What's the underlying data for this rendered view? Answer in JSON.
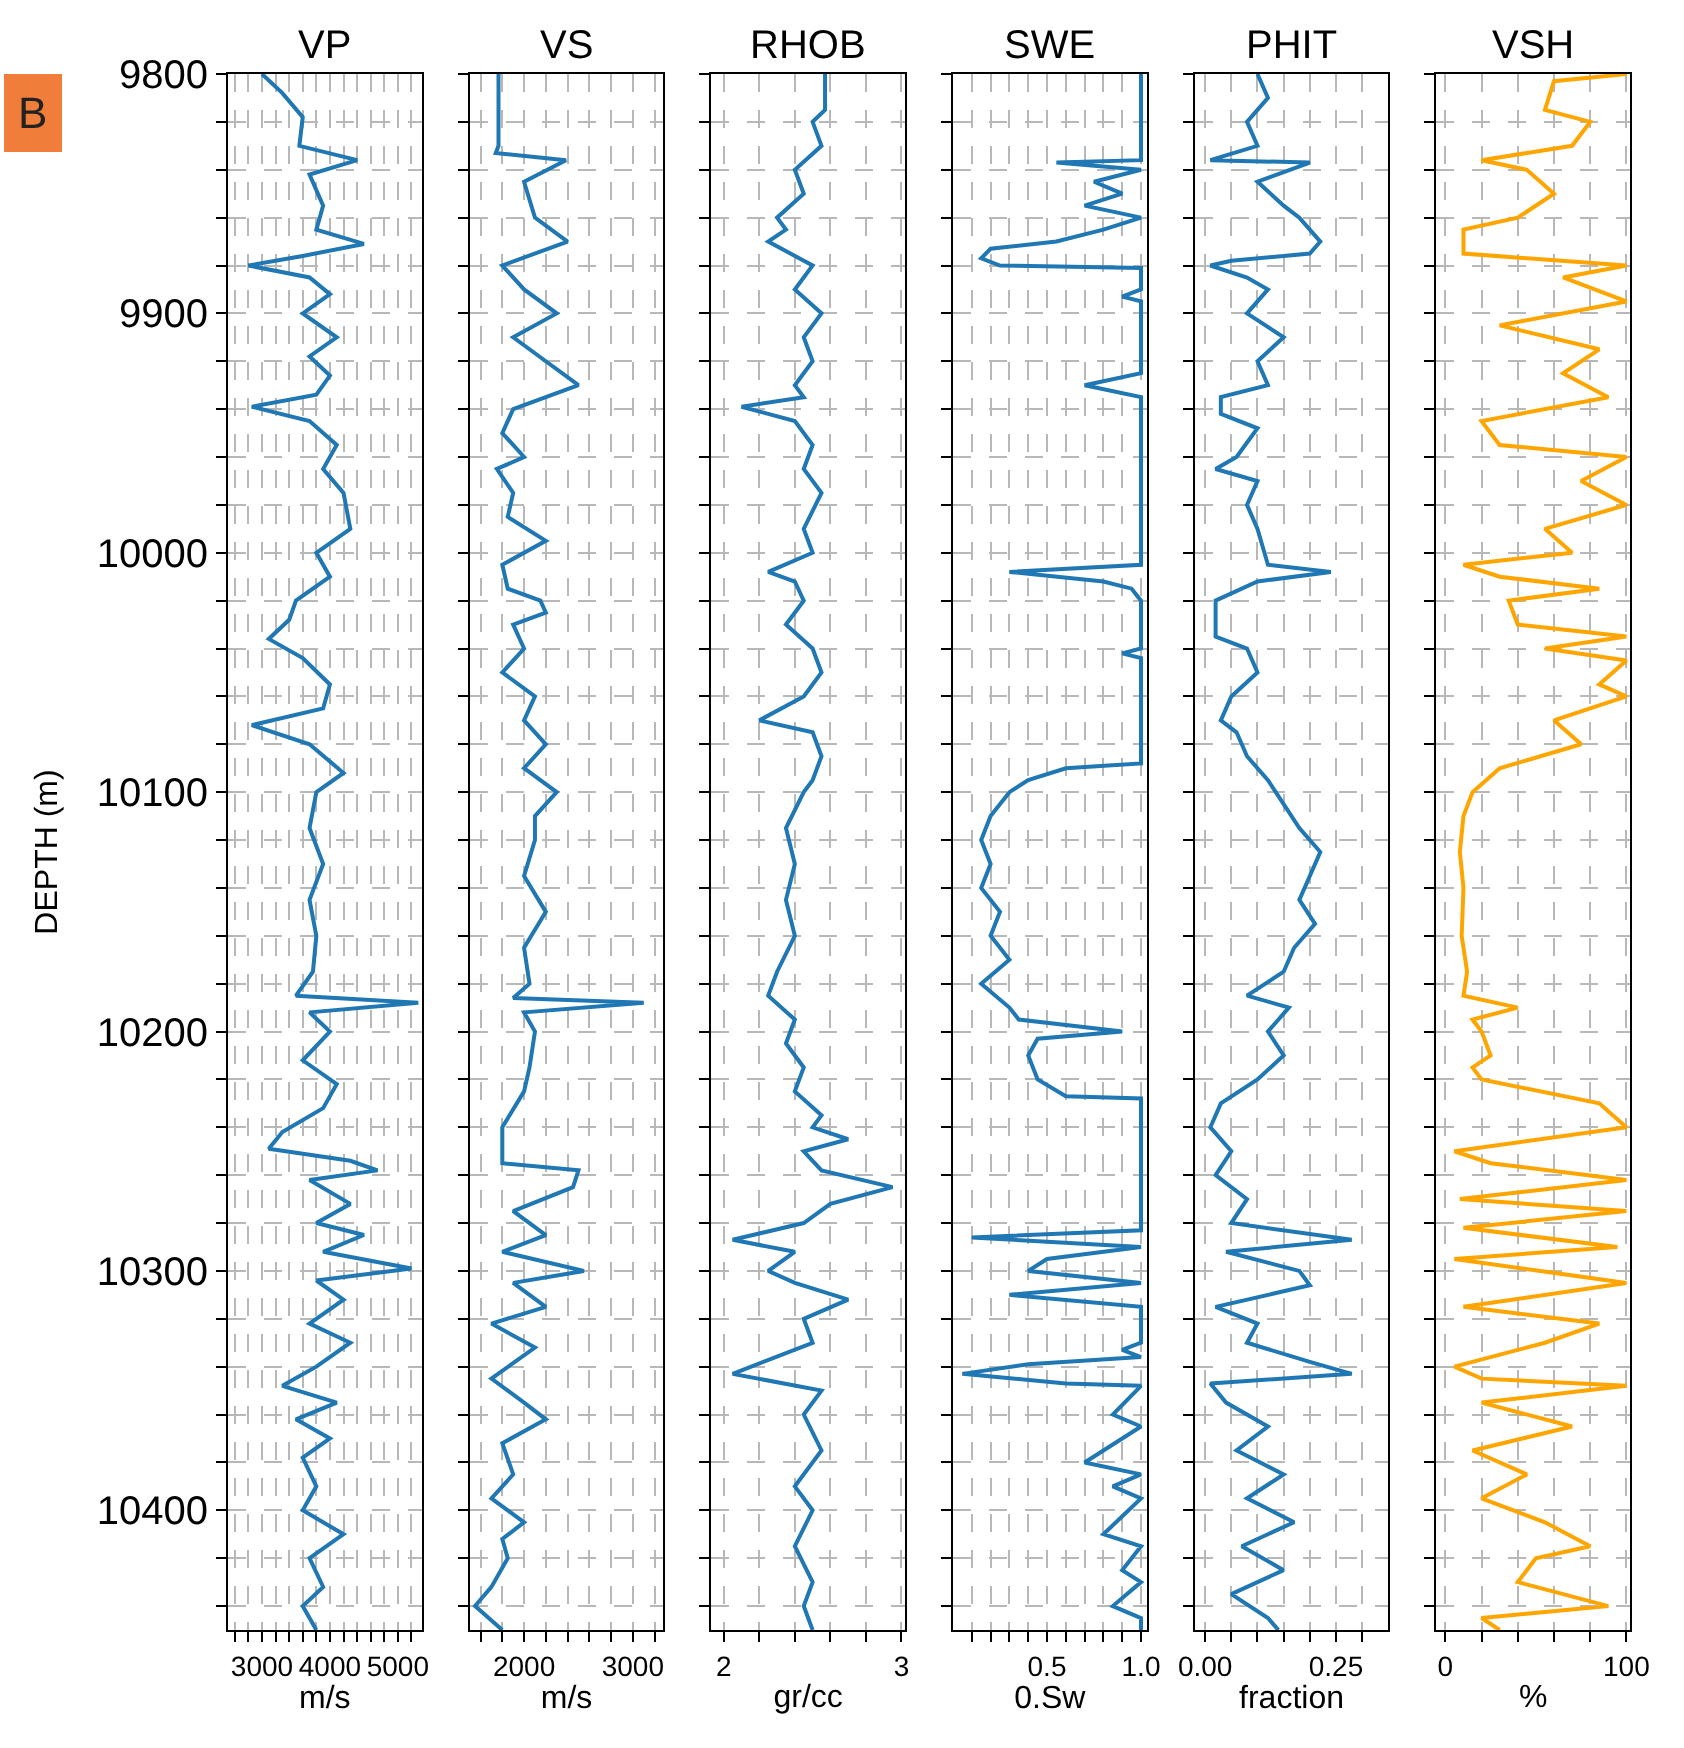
{
  "chart_data": [
    {
      "type": "line",
      "title": "VP",
      "xlabel": "m/s",
      "ylabel": "DEPTH (m)",
      "annotations": [
        "B"
      ],
      "grid": true,
      "xlim": [
        2500,
        5350
      ],
      "xticks": [
        {
          "value": 2600,
          "label": null
        },
        {
          "value": 2800,
          "label": null
        },
        3000,
        {
          "value": 3200,
          "label": null
        },
        {
          "value": 3400,
          "label": null
        },
        {
          "value": 3600,
          "label": null
        },
        {
          "value": 3800,
          "label": null
        },
        4000,
        {
          "value": 4200,
          "label": null
        },
        {
          "value": 4400,
          "label": null
        },
        {
          "value": 4600,
          "label": null
        },
        {
          "value": 4800,
          "label": null
        },
        5000,
        {
          "value": 5200,
          "label": null
        }
      ],
      "ylim": [
        10450,
        9800
      ],
      "yticks": [
        9800,
        {
          "value": 9820,
          "label": null
        },
        {
          "value": 9840,
          "label": null
        },
        {
          "value": 9860,
          "label": null
        },
        {
          "value": 9880,
          "label": null
        },
        9900,
        {
          "value": 9920,
          "label": null
        },
        {
          "value": 9940,
          "label": null
        },
        {
          "value": 9960,
          "label": null
        },
        {
          "value": 9980,
          "label": null
        },
        10000,
        {
          "value": 10020,
          "label": null
        },
        {
          "value": 10040,
          "label": null
        },
        {
          "value": 10060,
          "label": null
        },
        {
          "value": 10080,
          "label": null
        },
        10100,
        {
          "value": 10120,
          "label": null
        },
        {
          "value": 10140,
          "label": null
        },
        {
          "value": 10160,
          "label": null
        },
        {
          "value": 10180,
          "label": null
        },
        10200,
        {
          "value": 10220,
          "label": null
        },
        {
          "value": 10240,
          "label": null
        },
        {
          "value": 10260,
          "label": null
        },
        {
          "value": 10280,
          "label": null
        },
        10300,
        {
          "value": 10320,
          "label": null
        },
        {
          "value": 10340,
          "label": null
        },
        {
          "value": 10360,
          "label": null
        },
        {
          "value": 10380,
          "label": null
        },
        10400,
        {
          "value": 10420,
          "label": null
        },
        {
          "value": 10440,
          "label": null
        }
      ],
      "series": [
        {
          "color": "#1f77b4",
          "x": [
            3000,
            3300,
            3600,
            3550,
            4400,
            3700,
            3900,
            3800,
            4500,
            3600,
            2800,
            3700,
            4000,
            3600,
            4100,
            3700,
            4000,
            3800,
            2850,
            3700,
            4100,
            3900,
            4200,
            4300,
            3800,
            4000,
            3500,
            3400,
            3100,
            3600,
            4000,
            3900,
            2850,
            3700,
            4200,
            3800,
            3700,
            3900,
            3700,
            3800,
            3750,
            3500,
            5300,
            3700,
            4000,
            3600,
            4100,
            3900,
            3300,
            3100,
            4300,
            4700,
            3700,
            4300,
            3800,
            4500,
            3900,
            5200,
            3800,
            4200,
            3700,
            4300,
            3800,
            3300,
            4100,
            3500,
            4000,
            3600,
            3800,
            3600,
            4200,
            3700,
            3900,
            3600,
            3800
          ],
          "values": [
            9800,
            9808,
            9818,
            9830,
            9836,
            9842,
            9855,
            9865,
            9871,
            9876,
            9880,
            9885,
            9892,
            9900,
            9910,
            9918,
            9926,
            9934,
            9939,
            9945,
            9955,
            9965,
            9975,
            9990,
            10000,
            10010,
            10020,
            10028,
            10036,
            10044,
            10055,
            10065,
            10072,
            10080,
            10092,
            10100,
            10115,
            10130,
            10145,
            10160,
            10175,
            10185,
            10188,
            10192,
            10200,
            10212,
            10222,
            10232,
            10242,
            10249,
            10254,
            10258,
            10262,
            10272,
            10280,
            10285,
            10292,
            10299,
            10304,
            10312,
            10322,
            10330,
            10340,
            10348,
            10355,
            10362,
            10370,
            10378,
            10390,
            10400,
            10410,
            10420,
            10432,
            10440,
            10450
          ]
        }
      ]
    },
    {
      "type": "line",
      "title": "VS",
      "xlabel": "m/s",
      "grid": true,
      "tick_labels": "x",
      "xlim": [
        1500,
        3280
      ],
      "xticks": [
        {
          "value": 1600,
          "label": null
        },
        {
          "value": 1800,
          "label": null
        },
        2000,
        {
          "value": 2200,
          "label": null
        },
        {
          "value": 2400,
          "label": null
        },
        {
          "value": 2600,
          "label": null
        },
        {
          "value": 2800,
          "label": null
        },
        3000,
        {
          "value": 3200,
          "label": null
        }
      ],
      "ylim": [
        10450,
        9800
      ],
      "yticks": [
        9800,
        {
          "value": 9820,
          "label": null
        },
        {
          "value": 9840,
          "label": null
        },
        {
          "value": 9860,
          "label": null
        },
        {
          "value": 9880,
          "label": null
        },
        9900,
        {
          "value": 9920,
          "label": null
        },
        {
          "value": 9940,
          "label": null
        },
        {
          "value": 9960,
          "label": null
        },
        {
          "value": 9980,
          "label": null
        },
        10000,
        {
          "value": 10020,
          "label": null
        },
        {
          "value": 10040,
          "label": null
        },
        {
          "value": 10060,
          "label": null
        },
        {
          "value": 10080,
          "label": null
        },
        10100,
        {
          "value": 10120,
          "label": null
        },
        {
          "value": 10140,
          "label": null
        },
        {
          "value": 10160,
          "label": null
        },
        {
          "value": 10180,
          "label": null
        },
        10200,
        {
          "value": 10220,
          "label": null
        },
        {
          "value": 10240,
          "label": null
        },
        {
          "value": 10260,
          "label": null
        },
        {
          "value": 10280,
          "label": null
        },
        10300,
        {
          "value": 10320,
          "label": null
        },
        {
          "value": 10340,
          "label": null
        },
        {
          "value": 10360,
          "label": null
        },
        {
          "value": 10380,
          "label": null
        },
        10400,
        {
          "value": 10420,
          "label": null
        },
        {
          "value": 10440,
          "label": null
        }
      ],
      "series": [
        {
          "color": "#1f77b4",
          "x": [
            1765,
            1765,
            1740,
            2385,
            2000,
            2100,
            2400,
            1800,
            2000,
            2300,
            1900,
            2200,
            2500,
            1900,
            1800,
            2000,
            1750,
            1900,
            1850,
            2200,
            1800,
            1850,
            2150,
            2200,
            1900,
            2000,
            1800,
            2100,
            2000,
            2200,
            2000,
            2300,
            2100,
            2100,
            2000,
            2200,
            2000,
            2050,
            1900,
            3100,
            2000,
            2100,
            2050,
            2000,
            1800,
            1800,
            2500,
            2450,
            1900,
            2200,
            1800,
            2550,
            1900,
            2200,
            1700,
            2100,
            1700,
            2000,
            2200,
            1800,
            1900,
            1700,
            2000,
            1800,
            1850,
            1700,
            1550,
            1800
          ],
          "values": [
            9800,
            9830,
            9833,
            9836,
            9845,
            9860,
            9870,
            9880,
            9890,
            9900,
            9910,
            9920,
            9930,
            9940,
            9950,
            9960,
            9965,
            9975,
            9985,
            9995,
            10005,
            10015,
            10020,
            10025,
            10030,
            10040,
            10050,
            10060,
            10070,
            10080,
            10090,
            10100,
            10110,
            10120,
            10135,
            10150,
            10165,
            10180,
            10186,
            10188,
            10192,
            10200,
            10215,
            10225,
            10240,
            10255,
            10258,
            10265,
            10275,
            10285,
            10292,
            10300,
            10305,
            10315,
            10322,
            10332,
            10345,
            10355,
            10362,
            10372,
            10385,
            10395,
            10405,
            10412,
            10420,
            10432,
            10440,
            10450
          ]
        }
      ]
    },
    {
      "type": "line",
      "title": "RHOB",
      "xlabel": "gr/cc",
      "grid": true,
      "tick_labels": "x",
      "xlim": [
        1.93,
        3.02
      ],
      "xticks": [
        2,
        {
          "value": 2.2,
          "label": null
        },
        {
          "value": 2.4,
          "label": null
        },
        {
          "value": 2.6,
          "label": null
        },
        {
          "value": 2.8,
          "label": null
        },
        3
      ],
      "ylim": [
        10450,
        9800
      ],
      "yticks": [
        9800,
        {
          "value": 9820,
          "label": null
        },
        {
          "value": 9840,
          "label": null
        },
        {
          "value": 9860,
          "label": null
        },
        {
          "value": 9880,
          "label": null
        },
        9900,
        {
          "value": 9920,
          "label": null
        },
        {
          "value": 9940,
          "label": null
        },
        {
          "value": 9960,
          "label": null
        },
        {
          "value": 9980,
          "label": null
        },
        10000,
        {
          "value": 10020,
          "label": null
        },
        {
          "value": 10040,
          "label": null
        },
        {
          "value": 10060,
          "label": null
        },
        {
          "value": 10080,
          "label": null
        },
        10100,
        {
          "value": 10120,
          "label": null
        },
        {
          "value": 10140,
          "label": null
        },
        {
          "value": 10160,
          "label": null
        },
        {
          "value": 10180,
          "label": null
        },
        10200,
        {
          "value": 10220,
          "label": null
        },
        {
          "value": 10240,
          "label": null
        },
        {
          "value": 10260,
          "label": null
        },
        {
          "value": 10280,
          "label": null
        },
        10300,
        {
          "value": 10320,
          "label": null
        },
        {
          "value": 10340,
          "label": null
        },
        {
          "value": 10360,
          "label": null
        },
        {
          "value": 10380,
          "label": null
        },
        10400,
        {
          "value": 10420,
          "label": null
        },
        {
          "value": 10440,
          "label": null
        }
      ],
      "series": [
        {
          "color": "#1f77b4",
          "x": [
            2.57,
            2.57,
            2.5,
            2.55,
            2.4,
            2.45,
            2.3,
            2.35,
            2.25,
            2.5,
            2.4,
            2.55,
            2.45,
            2.5,
            2.4,
            2.45,
            2.1,
            2.4,
            2.5,
            2.45,
            2.55,
            2.45,
            2.5,
            2.25,
            2.4,
            2.45,
            2.35,
            2.5,
            2.55,
            2.45,
            2.2,
            2.5,
            2.55,
            2.5,
            2.45,
            2.35,
            2.4,
            2.35,
            2.4,
            2.3,
            2.25,
            2.4,
            2.35,
            2.45,
            2.4,
            2.55,
            2.5,
            2.7,
            2.45,
            2.55,
            2.95,
            2.6,
            2.45,
            2.05,
            2.4,
            2.25,
            2.4,
            2.7,
            2.45,
            2.5,
            2.05,
            2.55,
            2.45,
            2.55,
            2.4,
            2.5,
            2.4,
            2.5,
            2.45,
            2.5
          ],
          "values": [
            9800,
            9815,
            9820,
            9830,
            9840,
            9850,
            9860,
            9865,
            9870,
            9880,
            9890,
            9900,
            9910,
            9920,
            9930,
            9935,
            9939,
            9945,
            9955,
            9965,
            9975,
            9990,
            10000,
            10008,
            10012,
            10020,
            10030,
            10040,
            10050,
            10060,
            10070,
            10075,
            10085,
            10095,
            10100,
            10115,
            10130,
            10145,
            10160,
            10175,
            10185,
            10195,
            10205,
            10215,
            10225,
            10235,
            10240,
            10245,
            10250,
            10258,
            10265,
            10272,
            10280,
            10287,
            10292,
            10300,
            10305,
            10312,
            10320,
            10330,
            10343,
            10350,
            10360,
            10375,
            10390,
            10400,
            10415,
            10430,
            10440,
            10450
          ]
        }
      ]
    },
    {
      "type": "line",
      "title": "SWE",
      "xlabel": "0.Sw",
      "grid": true,
      "tick_labels": "x",
      "xlim": [
        0,
        1.03
      ],
      "xticks": [
        {
          "value": 0.1,
          "label": null
        },
        {
          "value": 0.2,
          "label": null
        },
        {
          "value": 0.3,
          "label": null
        },
        {
          "value": 0.4,
          "label": null
        },
        0.5,
        {
          "value": 0.6,
          "label": null
        },
        {
          "value": 0.7,
          "label": null
        },
        {
          "value": 0.8,
          "label": null
        },
        {
          "value": 0.9,
          "label": null
        },
        {
          "value": 1,
          "label": "1.0"
        }
      ],
      "ylim": [
        10450,
        9800
      ],
      "yticks": [
        9800,
        {
          "value": 9820,
          "label": null
        },
        {
          "value": 9840,
          "label": null
        },
        {
          "value": 9860,
          "label": null
        },
        {
          "value": 9880,
          "label": null
        },
        9900,
        {
          "value": 9920,
          "label": null
        },
        {
          "value": 9940,
          "label": null
        },
        {
          "value": 9960,
          "label": null
        },
        {
          "value": 9980,
          "label": null
        },
        10000,
        {
          "value": 10020,
          "label": null
        },
        {
          "value": 10040,
          "label": null
        },
        {
          "value": 10060,
          "label": null
        },
        {
          "value": 10080,
          "label": null
        },
        10100,
        {
          "value": 10120,
          "label": null
        },
        {
          "value": 10140,
          "label": null
        },
        {
          "value": 10160,
          "label": null
        },
        {
          "value": 10180,
          "label": null
        },
        10200,
        {
          "value": 10220,
          "label": null
        },
        {
          "value": 10240,
          "label": null
        },
        {
          "value": 10260,
          "label": null
        },
        {
          "value": 10280,
          "label": null
        },
        10300,
        {
          "value": 10320,
          "label": null
        },
        {
          "value": 10340,
          "label": null
        },
        {
          "value": 10360,
          "label": null
        },
        {
          "value": 10380,
          "label": null
        },
        10400,
        {
          "value": 10420,
          "label": null
        },
        {
          "value": 10440,
          "label": null
        }
      ],
      "series": [
        {
          "color": "#1f77b4",
          "x": [
            1.0,
            1.0,
            0.55,
            1.0,
            0.75,
            0.9,
            0.7,
            1.0,
            0.8,
            0.55,
            0.2,
            0.15,
            0.25,
            1.0,
            1.0,
            0.9,
            1.0,
            1.0,
            0.7,
            1.0,
            1.0,
            0.3,
            0.8,
            0.95,
            1.0,
            1.0,
            0.9,
            1.0,
            1.0,
            0.6,
            0.4,
            0.3,
            0.2,
            0.15,
            0.2,
            0.15,
            0.25,
            0.2,
            0.3,
            0.15,
            0.3,
            0.35,
            0.9,
            0.45,
            0.4,
            0.45,
            0.6,
            1.0,
            1.0,
            0.1,
            1.0,
            0.5,
            0.4,
            1.0,
            0.3,
            1.0,
            1.0,
            0.9,
            1.0,
            0.4,
            0.05,
            0.6,
            1.0,
            0.85,
            1.0,
            0.7,
            1.0,
            0.85,
            1.0,
            0.8,
            1.0,
            0.9,
            1.0,
            0.85,
            1.0,
            1.0
          ],
          "values": [
            9800,
            9836,
            9837,
            9840,
            9845,
            9850,
            9855,
            9860,
            9865,
            9870,
            9873,
            9877,
            9880,
            9881,
            9890,
            9893,
            9895,
            9925,
            9930,
            9935,
            10005,
            10008,
            10012,
            10015,
            10020,
            10040,
            10042,
            10044,
            10088,
            10090,
            10095,
            10100,
            10110,
            10120,
            10130,
            10140,
            10150,
            10160,
            10170,
            10180,
            10190,
            10195,
            10200,
            10203,
            10210,
            10220,
            10227,
            10228,
            10283,
            10286,
            10290,
            10295,
            10300,
            10305,
            10310,
            10315,
            10330,
            10333,
            10336,
            10339,
            10343,
            10347,
            10348,
            10360,
            10365,
            10380,
            10385,
            10390,
            10395,
            10410,
            10415,
            10425,
            10430,
            10440,
            10445,
            10450
          ]
        }
      ]
    },
    {
      "type": "line",
      "title": "PHIT",
      "xlabel": "fraction",
      "grid": true,
      "tick_labels": "x",
      "xlim": [
        -0.02,
        0.35
      ],
      "xticks": [
        {
          "value": 0,
          "label": "0.00"
        },
        {
          "value": 0.05,
          "label": null
        },
        {
          "value": 0.1,
          "label": null
        },
        {
          "value": 0.15,
          "label": null
        },
        {
          "value": 0.2,
          "label": null
        },
        0.25,
        {
          "value": 0.3,
          "label": null
        }
      ],
      "ylim": [
        10450,
        9800
      ],
      "yticks": [
        9800,
        {
          "value": 9820,
          "label": null
        },
        {
          "value": 9840,
          "label": null
        },
        {
          "value": 9860,
          "label": null
        },
        {
          "value": 9880,
          "label": null
        },
        9900,
        {
          "value": 9920,
          "label": null
        },
        {
          "value": 9940,
          "label": null
        },
        {
          "value": 9960,
          "label": null
        },
        {
          "value": 9980,
          "label": null
        },
        10000,
        {
          "value": 10020,
          "label": null
        },
        {
          "value": 10040,
          "label": null
        },
        {
          "value": 10060,
          "label": null
        },
        {
          "value": 10080,
          "label": null
        },
        10100,
        {
          "value": 10120,
          "label": null
        },
        {
          "value": 10140,
          "label": null
        },
        {
          "value": 10160,
          "label": null
        },
        {
          "value": 10180,
          "label": null
        },
        10200,
        {
          "value": 10220,
          "label": null
        },
        {
          "value": 10240,
          "label": null
        },
        {
          "value": 10260,
          "label": null
        },
        {
          "value": 10280,
          "label": null
        },
        10300,
        {
          "value": 10320,
          "label": null
        },
        {
          "value": 10340,
          "label": null
        },
        {
          "value": 10360,
          "label": null
        },
        {
          "value": 10380,
          "label": null
        },
        10400,
        {
          "value": 10420,
          "label": null
        },
        {
          "value": 10440,
          "label": null
        }
      ],
      "series": [
        {
          "color": "#1f77b4",
          "x": [
            0.1,
            0.12,
            0.08,
            0.1,
            0.01,
            0.2,
            0.1,
            0.15,
            0.18,
            0.2,
            0.22,
            0.2,
            0.05,
            0.01,
            0.08,
            0.12,
            0.08,
            0.15,
            0.1,
            0.12,
            0.03,
            0.03,
            0.1,
            0.06,
            0.02,
            0.1,
            0.08,
            0.1,
            0.12,
            0.24,
            0.1,
            0.02,
            0.02,
            0.08,
            0.1,
            0.05,
            0.03,
            0.06,
            0.08,
            0.12,
            0.15,
            0.18,
            0.22,
            0.2,
            0.18,
            0.21,
            0.17,
            0.15,
            0.08,
            0.16,
            0.12,
            0.15,
            0.1,
            0.03,
            0.01,
            0.05,
            0.02,
            0.08,
            0.05,
            0.28,
            0.04,
            0.18,
            0.2,
            0.02,
            0.1,
            0.08,
            0.2,
            0.28,
            0.01,
            0.04,
            0.12,
            0.06,
            0.15,
            0.08,
            0.17,
            0.07,
            0.15,
            0.05,
            0.12,
            0.14
          ],
          "values": [
            9800,
            9810,
            9820,
            9830,
            9836,
            9837,
            9845,
            9855,
            9860,
            9865,
            9870,
            9875,
            9878,
            9880,
            9885,
            9890,
            9900,
            9910,
            9920,
            9930,
            9935,
            9942,
            9948,
            9960,
            9965,
            9970,
            9980,
            9990,
            10005,
            10008,
            10012,
            10020,
            10035,
            10040,
            10050,
            10060,
            10070,
            10075,
            10085,
            10095,
            10105,
            10115,
            10125,
            10135,
            10145,
            10155,
            10165,
            10175,
            10185,
            10190,
            10200,
            10210,
            10220,
            10230,
            10240,
            10250,
            10260,
            10270,
            10280,
            10287,
            10292,
            10300,
            10306,
            10315,
            10322,
            10330,
            10338,
            10343,
            10347,
            10355,
            10365,
            10375,
            10385,
            10395,
            10405,
            10415,
            10425,
            10435,
            10445,
            10450
          ]
        }
      ]
    },
    {
      "type": "line",
      "title": "VSH",
      "xlabel": "%",
      "grid": true,
      "tick_labels": "x",
      "xlim": [
        -5,
        102
      ],
      "xticks": [
        0,
        {
          "value": 20,
          "label": null
        },
        {
          "value": 40,
          "label": null
        },
        {
          "value": 60,
          "label": null
        },
        {
          "value": 80,
          "label": null
        },
        100
      ],
      "ylim": [
        10450,
        9800
      ],
      "yticks": [
        9800,
        {
          "value": 9820,
          "label": null
        },
        {
          "value": 9840,
          "label": null
        },
        {
          "value": 9860,
          "label": null
        },
        {
          "value": 9880,
          "label": null
        },
        9900,
        {
          "value": 9920,
          "label": null
        },
        {
          "value": 9940,
          "label": null
        },
        {
          "value": 9960,
          "label": null
        },
        {
          "value": 9980,
          "label": null
        },
        10000,
        {
          "value": 10020,
          "label": null
        },
        {
          "value": 10040,
          "label": null
        },
        {
          "value": 10060,
          "label": null
        },
        {
          "value": 10080,
          "label": null
        },
        10100,
        {
          "value": 10120,
          "label": null
        },
        {
          "value": 10140,
          "label": null
        },
        {
          "value": 10160,
          "label": null
        },
        {
          "value": 10180,
          "label": null
        },
        10200,
        {
          "value": 10220,
          "label": null
        },
        {
          "value": 10240,
          "label": null
        },
        {
          "value": 10260,
          "label": null
        },
        {
          "value": 10280,
          "label": null
        },
        10300,
        {
          "value": 10320,
          "label": null
        },
        {
          "value": 10340,
          "label": null
        },
        {
          "value": 10360,
          "label": null
        },
        {
          "value": 10380,
          "label": null
        },
        10400,
        {
          "value": 10420,
          "label": null
        },
        {
          "value": 10440,
          "label": null
        }
      ],
      "series": [
        {
          "color": "#ffa500",
          "x": [
            100,
            60,
            55,
            80,
            70,
            20,
            45,
            60,
            40,
            10,
            10,
            100,
            65,
            100,
            30,
            85,
            65,
            90,
            20,
            30,
            100,
            75,
            100,
            55,
            70,
            10,
            30,
            85,
            35,
            40,
            100,
            55,
            100,
            85,
            100,
            60,
            75,
            30,
            15,
            10,
            8,
            10,
            9,
            12,
            10,
            40,
            15,
            20,
            25,
            15,
            20,
            85,
            100,
            5,
            25,
            100,
            8,
            100,
            10,
            95,
            5,
            100,
            10,
            85,
            55,
            5,
            20,
            100,
            20,
            70,
            15,
            45,
            20,
            55,
            80,
            50,
            40,
            90,
            20,
            30
          ],
          "values": [
            9800,
            9803,
            9815,
            9820,
            9830,
            9836,
            9840,
            9850,
            9860,
            9865,
            9875,
            9880,
            9885,
            9895,
            9905,
            9915,
            9925,
            9935,
            9945,
            9955,
            9960,
            9970,
            9980,
            9990,
            10000,
            10005,
            10010,
            10015,
            10020,
            10030,
            10035,
            10040,
            10045,
            10055,
            10060,
            10070,
            10080,
            10090,
            10100,
            10110,
            10125,
            10140,
            10160,
            10175,
            10185,
            10190,
            10195,
            10200,
            10210,
            10215,
            10220,
            10230,
            10240,
            10250,
            10255,
            10262,
            10270,
            10275,
            10282,
            10290,
            10295,
            10305,
            10315,
            10322,
            10330,
            10340,
            10345,
            10348,
            10355,
            10365,
            10375,
            10385,
            10395,
            10405,
            10415,
            10420,
            10430,
            10440,
            10445,
            10450
          ]
        }
      ]
    }
  ]
}
